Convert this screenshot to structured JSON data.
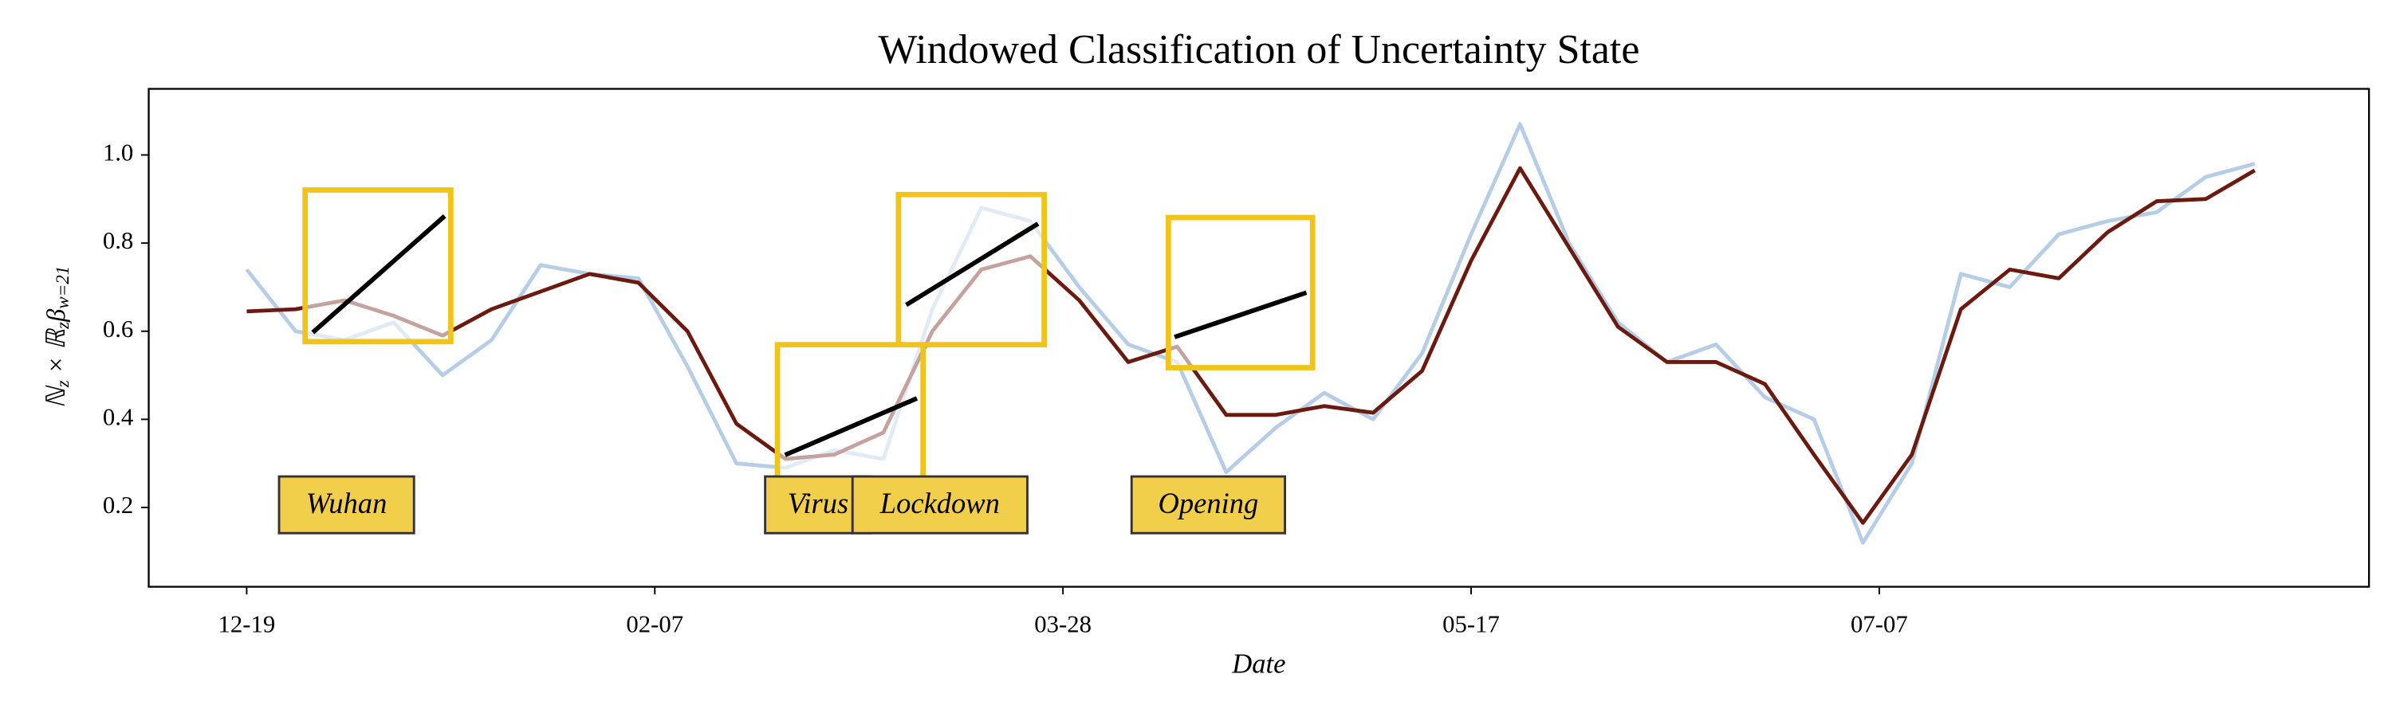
{
  "chart_data": {
    "type": "line",
    "title": "Windowed Classification of Uncertainty State",
    "xlabel": "Date",
    "ylabel_parts": [
      "ℕ",
      "z",
      " × ℝ",
      "z",
      "β",
      "w=21"
    ],
    "x": [
      0,
      6,
      12,
      18,
      24,
      30,
      36,
      42,
      48,
      54,
      60,
      66,
      72,
      78,
      84,
      90,
      96,
      102,
      108,
      114,
      120,
      126,
      132,
      138,
      144,
      150,
      156,
      162,
      168,
      174,
      180,
      186,
      192,
      198,
      204,
      210,
      216,
      222,
      228,
      234,
      240,
      246
    ],
    "series": [
      {
        "color": "#b5cde6",
        "values": [
          0.74,
          0.6,
          0.58,
          0.62,
          0.5,
          0.58,
          0.75,
          0.73,
          0.72,
          0.52,
          0.3,
          0.29,
          0.33,
          0.31,
          0.65,
          0.88,
          0.85,
          0.7,
          0.57,
          0.53,
          0.28,
          0.38,
          0.46,
          0.4,
          0.55,
          0.82,
          1.07,
          0.8,
          0.62,
          0.53,
          0.57,
          0.45,
          0.4,
          0.12,
          0.3,
          0.73,
          0.7,
          0.82,
          0.85,
          0.87,
          0.95,
          0.98
        ]
      },
      {
        "color": "#6b1a10",
        "values": [
          0.645,
          0.65,
          0.67,
          0.635,
          0.59,
          0.65,
          0.69,
          0.73,
          0.71,
          0.6,
          0.39,
          0.31,
          0.32,
          0.37,
          0.6,
          0.74,
          0.77,
          0.67,
          0.53,
          0.565,
          0.41,
          0.41,
          0.43,
          0.415,
          0.51,
          0.76,
          0.97,
          0.79,
          0.61,
          0.53,
          0.53,
          0.48,
          0.32,
          0.165,
          0.32,
          0.65,
          0.74,
          0.72,
          0.825,
          0.895,
          0.9,
          0.965
        ]
      }
    ],
    "xlim": [
      -12,
      260
    ],
    "ylim": [
      0.02,
      1.15
    ],
    "xticks": [
      {
        "value": 0,
        "label": "12-19"
      },
      {
        "value": 50,
        "label": "02-07"
      },
      {
        "value": 100,
        "label": "03-28"
      },
      {
        "value": 150,
        "label": "05-17"
      },
      {
        "value": 200,
        "label": "07-07"
      }
    ],
    "yticks": [
      0.2,
      0.4,
      0.6,
      0.8,
      {
        "value": 1,
        "label": "1.0"
      }
    ],
    "annotations": [
      "Wuhan",
      "Virus",
      "Lockdown",
      "Opening"
    ],
    "annotation_color": "#f2cf4a"
  }
}
